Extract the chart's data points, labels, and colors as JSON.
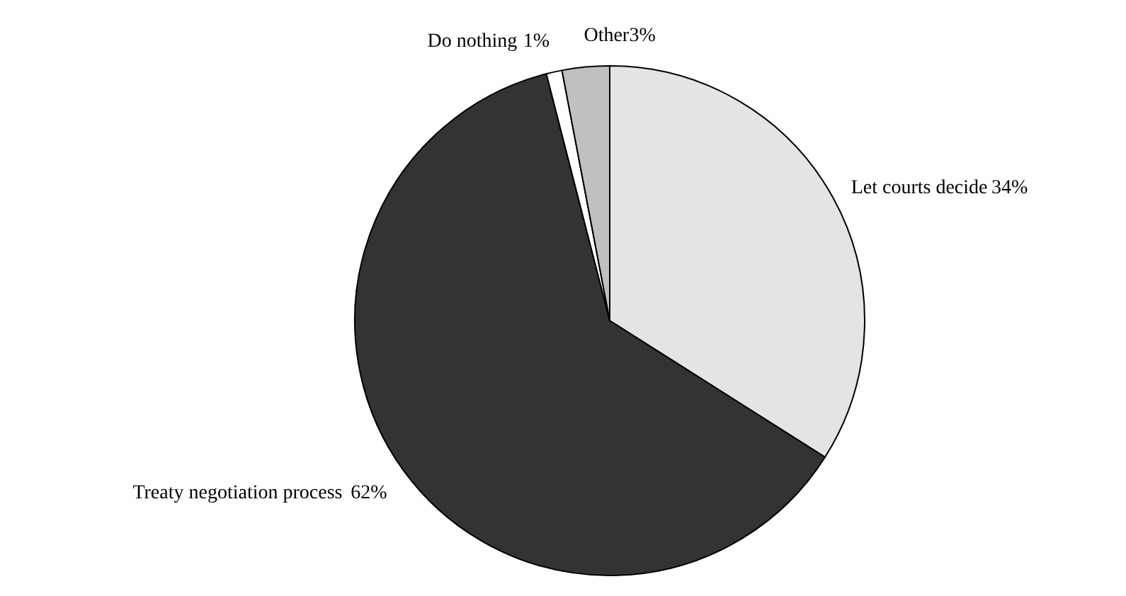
{
  "chart_data": {
    "type": "pie",
    "categories": [
      "Let courts decide",
      "Treaty negotiation process",
      "Do nothing",
      "Other"
    ],
    "values": [
      34,
      62,
      1,
      3
    ],
    "colors": [
      "#e4e4e4",
      "#333333",
      "#ffffff",
      "#c0c0c0"
    ],
    "value_labels": [
      "34%",
      "62%",
      "1%",
      "3%"
    ]
  }
}
